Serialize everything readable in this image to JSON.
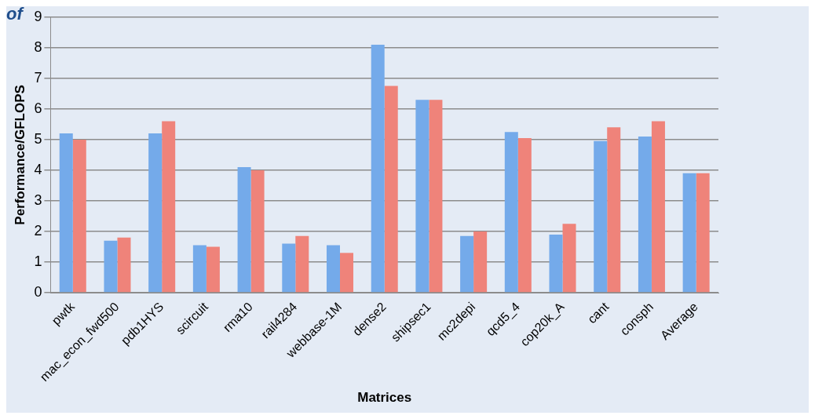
{
  "chart_data": {
    "type": "bar",
    "xlabel": "Matrices",
    "ylabel": "Performance/GFLOPS",
    "categories": [
      "pwtk",
      "mac_econ_fwd500",
      "pdb1HYS",
      "scircuit",
      "rma10",
      "rail4284",
      "webbase-1M",
      "dense2",
      "shipsec1",
      "mc2depi",
      "qcd5_4",
      "cop20k_A",
      "cant",
      "consph",
      "Average"
    ],
    "series": [
      {
        "color": "#74aaea",
        "values": [
          5.2,
          1.7,
          5.2,
          1.55,
          4.1,
          1.6,
          1.55,
          8.1,
          6.3,
          1.85,
          5.25,
          1.9,
          4.95,
          5.1,
          3.9
        ]
      },
      {
        "color": "#ef837a",
        "values": [
          5.0,
          1.8,
          5.6,
          1.5,
          4.0,
          1.85,
          1.3,
          6.75,
          6.3,
          2.0,
          5.05,
          2.25,
          5.4,
          5.6,
          3.9
        ]
      }
    ],
    "ylim": [
      0,
      9
    ],
    "yticks": [
      0,
      1,
      2,
      3,
      4,
      5,
      6,
      7,
      8,
      9
    ],
    "grid": "y",
    "legend": false,
    "annotations": [
      "of"
    ]
  }
}
